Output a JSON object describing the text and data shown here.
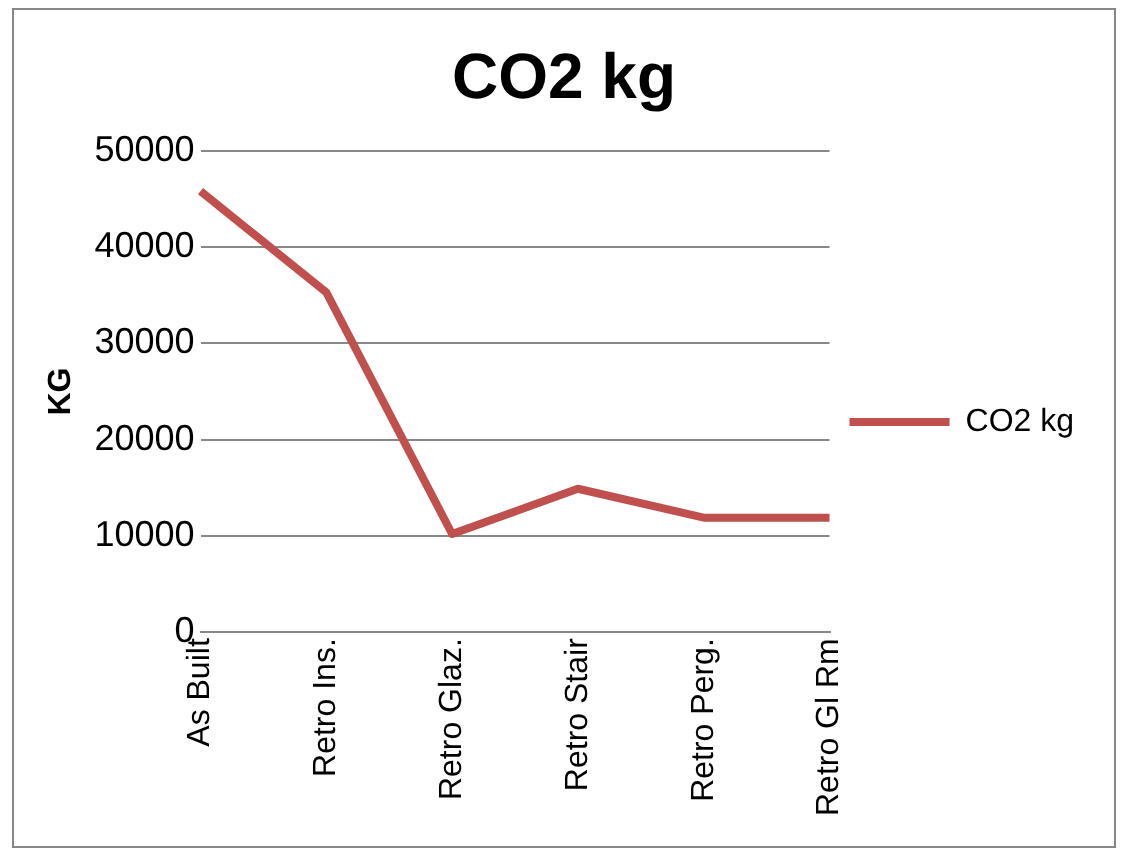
{
  "chart_data": {
    "type": "line",
    "title": "CO2 kg",
    "ylabel": "KG",
    "categories": [
      "As Built",
      "Retro Ins.",
      "Retro Glaz.",
      "Retro Stair",
      "Retro Perg.",
      "Retro Gl Rm"
    ],
    "series": [
      {
        "name": "CO2 kg",
        "color": "#c0504d",
        "values": [
          45800,
          35300,
          10200,
          14900,
          11900,
          11900
        ]
      }
    ],
    "ylim": [
      0,
      50000
    ],
    "yticks": [
      0,
      10000,
      20000,
      30000,
      40000,
      50000
    ],
    "grid": "y",
    "legend": "right",
    "marker": "none"
  }
}
